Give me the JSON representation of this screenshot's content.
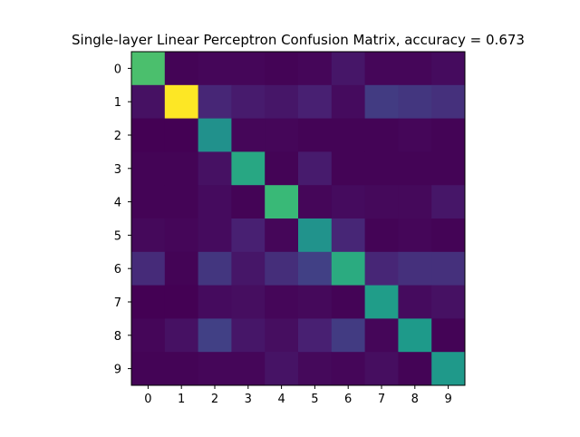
{
  "chart_data": {
    "type": "heatmap",
    "title": "Single-layer Linear Perceptron Confusion Matrix, accuracy = 0.673",
    "x_tick_labels": [
      "0",
      "1",
      "2",
      "3",
      "4",
      "5",
      "6",
      "7",
      "8",
      "9"
    ],
    "y_tick_labels": [
      "0",
      "1",
      "2",
      "3",
      "4",
      "5",
      "6",
      "7",
      "8",
      "9"
    ],
    "colormap": "viridis",
    "color_range": [
      0,
      1
    ],
    "matrix": [
      [
        0.8,
        0.01,
        0.02,
        0.02,
        0.01,
        0.02,
        0.08,
        0.02,
        0.02,
        0.04
      ],
      [
        0.06,
        1.0,
        0.14,
        0.1,
        0.08,
        0.12,
        0.04,
        0.22,
        0.2,
        0.18
      ],
      [
        0.0,
        0.0,
        0.5,
        0.02,
        0.02,
        0.01,
        0.01,
        0.01,
        0.02,
        0.01
      ],
      [
        0.01,
        0.01,
        0.06,
        0.68,
        0.01,
        0.1,
        0.01,
        0.01,
        0.01,
        0.01
      ],
      [
        0.01,
        0.01,
        0.04,
        0.01,
        0.76,
        0.02,
        0.04,
        0.03,
        0.03,
        0.08
      ],
      [
        0.03,
        0.02,
        0.04,
        0.12,
        0.02,
        0.52,
        0.14,
        0.01,
        0.02,
        0.01
      ],
      [
        0.16,
        0.01,
        0.2,
        0.08,
        0.17,
        0.24,
        0.7,
        0.14,
        0.18,
        0.18
      ],
      [
        0.0,
        0.0,
        0.04,
        0.05,
        0.02,
        0.03,
        0.01,
        0.64,
        0.04,
        0.06
      ],
      [
        0.02,
        0.06,
        0.24,
        0.08,
        0.05,
        0.12,
        0.22,
        0.02,
        0.62,
        0.01
      ],
      [
        0.01,
        0.01,
        0.02,
        0.02,
        0.07,
        0.03,
        0.02,
        0.05,
        0.01,
        0.6
      ]
    ],
    "grid": false
  }
}
